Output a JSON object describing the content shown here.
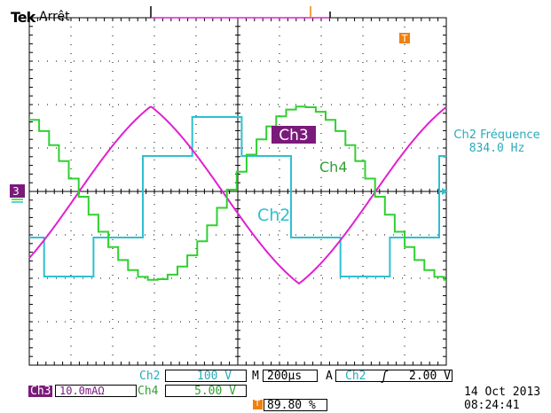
{
  "header": {
    "brand": "Tek",
    "status": "Arrêt"
  },
  "trigger_markers": {
    "top": "T",
    "position": "T"
  },
  "channel_markers": {
    "ch3": "3"
  },
  "measurement": {
    "title": "Ch2 Fréquence",
    "value": "834.0 Hz"
  },
  "trace_labels": {
    "ch3": "Ch3",
    "ch4": "Ch4",
    "ch2": "Ch2"
  },
  "colors": {
    "ch2": "#2ec0d0",
    "ch3": "#e020d0",
    "ch4": "#30d030",
    "badge": "#7a1a7a",
    "trigger": "#f08010",
    "grid": "#000000"
  },
  "settings": {
    "ch2_label": "Ch2",
    "ch2_scale": "100 V",
    "timebase_label": "M",
    "timebase": "200µs",
    "trigger_mode": "A",
    "trigger_source": "Ch2",
    "trigger_slope": "ʃ",
    "trigger_level": "2.00 V",
    "ch3_label": "Ch3",
    "ch3_scale": "10.0mAΩ",
    "ch4_label": "Ch4",
    "ch4_scale": "5.00 V",
    "trigger_marker": "T",
    "trigger_position": "89.80 %"
  },
  "datetime": {
    "date": "14 Oct  2013",
    "time": "08:24:41"
  }
}
